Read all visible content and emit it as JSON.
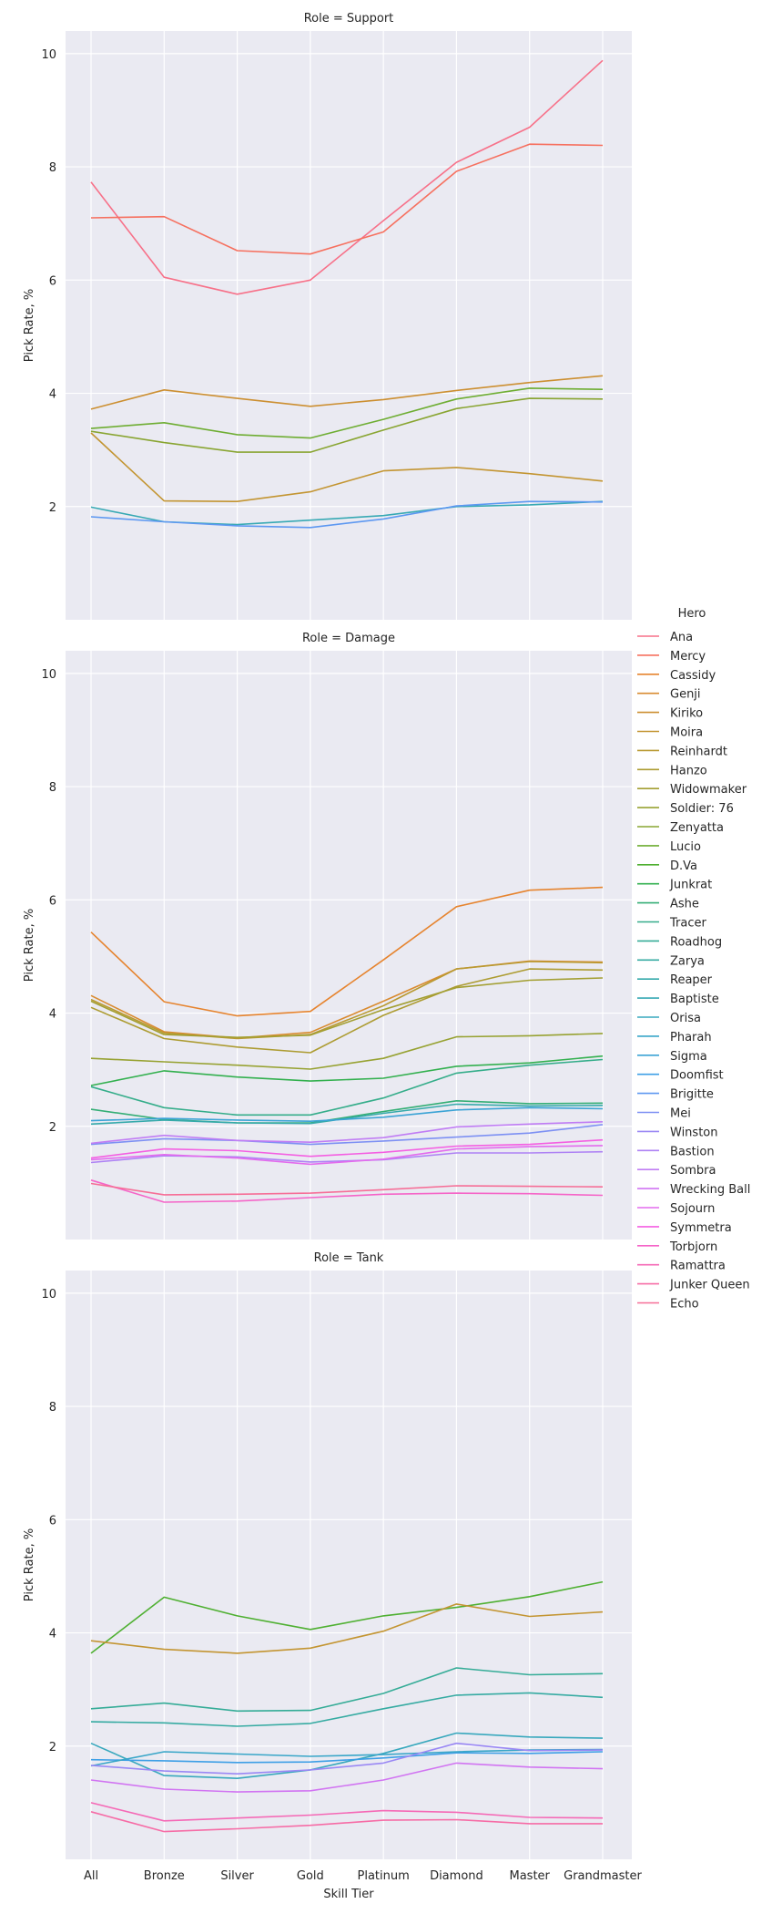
{
  "chart_data": {
    "type": "line",
    "xlabel": "Skill Tier",
    "ylabel": "Pick Rate, %",
    "ylim": [
      0,
      10.4
    ],
    "yticks": [
      2,
      4,
      6,
      8,
      10
    ],
    "grid": true,
    "legend_title": "Hero",
    "legend_position": "right",
    "categories": [
      "All",
      "Bronze",
      "Silver",
      "Gold",
      "Platinum",
      "Diamond",
      "Master",
      "Grandmaster"
    ],
    "palette": {
      "Ana": "#f77189",
      "Mercy": "#f6705f",
      "Cassidy": "#e6842f",
      "Genji": "#d98b30",
      "Kiriko": "#cc8f31",
      "Moira": "#c39532",
      "Reinhardt": "#b99a32",
      "Hanzo": "#ad9c32",
      "Widowmaker": "#a39f32",
      "Soldier: 76": "#97a232",
      "Zenyatta": "#89a532",
      "Lucio": "#6ead32",
      "D.Va": "#4fb032",
      "Junkrat": "#33b04f",
      "Ashe": "#34ae75",
      "Tracer": "#35ad8a",
      "Roadhog": "#35ac97",
      "Zarya": "#36aba2",
      "Reaper": "#36aaab",
      "Baptiste": "#37a9b4",
      "Orisa": "#38a8bd",
      "Pharah": "#39a6c8",
      "Sigma": "#3ba3d5",
      "Doomfist": "#3d9fe6",
      "Brigitte": "#5d98f1",
      "Mei": "#7d90f3",
      "Winston": "#9a88f4",
      "Bastion": "#ae82f4",
      "Sombra": "#c07df4",
      "Wrecking Ball": "#d174f2",
      "Sojourn": "#e36bee",
      "Symmetra": "#f45fe2",
      "Torbjorn": "#f565c8",
      "Ramattra": "#f569b6",
      "Junker Queen": "#f66ca6",
      "Echo": "#f66e97"
    },
    "panels": [
      {
        "title": "Role = Support",
        "series": [
          {
            "name": "Ana",
            "values": [
              7.73,
              6.05,
              5.75,
              6.0,
              7.05,
              8.08,
              8.7,
              9.88
            ]
          },
          {
            "name": "Mercy",
            "values": [
              7.1,
              7.12,
              6.52,
              6.46,
              6.85,
              7.92,
              8.4,
              8.38
            ]
          },
          {
            "name": "Kiriko",
            "values": [
              3.72,
              4.06,
              3.91,
              3.77,
              3.89,
              4.05,
              4.19,
              4.31
            ]
          },
          {
            "name": "Moira",
            "values": [
              3.3,
              2.1,
              2.09,
              2.26,
              2.63,
              2.69,
              2.58,
              2.45
            ]
          },
          {
            "name": "Zenyatta",
            "values": [
              3.33,
              3.13,
              2.96,
              2.96,
              3.35,
              3.73,
              3.91,
              3.9
            ]
          },
          {
            "name": "Lucio",
            "values": [
              3.38,
              3.48,
              3.27,
              3.21,
              3.54,
              3.9,
              4.09,
              4.07
            ]
          },
          {
            "name": "Baptiste",
            "values": [
              1.99,
              1.73,
              1.68,
              1.76,
              1.84,
              2.0,
              2.03,
              2.09
            ]
          },
          {
            "name": "Brigitte",
            "values": [
              1.82,
              1.73,
              1.66,
              1.63,
              1.78,
              2.01,
              2.09,
              2.08
            ]
          }
        ]
      },
      {
        "title": "Role = Damage",
        "series": [
          {
            "name": "Cassidy",
            "values": [
              5.43,
              4.2,
              3.95,
              4.03,
              4.94,
              5.88,
              6.17,
              6.22
            ]
          },
          {
            "name": "Genji",
            "values": [
              4.31,
              3.67,
              3.56,
              3.66,
              4.21,
              4.78,
              4.92,
              4.9
            ]
          },
          {
            "name": "Reinhardt",
            "values": [
              4.24,
              3.65,
              3.55,
              3.62,
              4.13,
              4.78,
              4.91,
              4.89
            ]
          },
          {
            "name": "Hanzo",
            "values": [
              4.1,
              3.55,
              3.4,
              3.3,
              3.96,
              4.47,
              4.78,
              4.76
            ]
          },
          {
            "name": "Widowmaker",
            "values": [
              4.21,
              3.62,
              3.57,
              3.61,
              4.06,
              4.45,
              4.58,
              4.62
            ]
          },
          {
            "name": "Soldier: 76",
            "values": [
              3.2,
              3.14,
              3.08,
              3.01,
              3.2,
              3.58,
              3.6,
              3.64
            ]
          },
          {
            "name": "Junkrat",
            "values": [
              2.72,
              2.98,
              2.87,
              2.8,
              2.85,
              3.06,
              3.12,
              3.24
            ]
          },
          {
            "name": "Ashe",
            "values": [
              2.3,
              2.12,
              2.06,
              2.06,
              2.26,
              2.45,
              2.4,
              2.41
            ]
          },
          {
            "name": "Tracer",
            "values": [
              2.7,
              2.33,
              2.2,
              2.2,
              2.5,
              2.94,
              3.08,
              3.18
            ]
          },
          {
            "name": "Reaper",
            "values": [
              2.04,
              2.11,
              2.06,
              2.05,
              2.23,
              2.39,
              2.36,
              2.37
            ]
          },
          {
            "name": "Sigma",
            "values": [
              2.1,
              2.14,
              2.11,
              2.09,
              2.16,
              2.29,
              2.33,
              2.31
            ]
          },
          {
            "name": "Mei",
            "values": [
              1.68,
              1.78,
              1.75,
              1.68,
              1.74,
              1.81,
              1.88,
              2.03
            ]
          },
          {
            "name": "Sombra",
            "values": [
              1.7,
              1.84,
              1.75,
              1.72,
              1.8,
              1.99,
              2.04,
              2.08
            ]
          },
          {
            "name": "Bastion",
            "values": [
              1.36,
              1.48,
              1.46,
              1.37,
              1.41,
              1.53,
              1.53,
              1.55
            ]
          },
          {
            "name": "Sojourn",
            "values": [
              1.41,
              1.5,
              1.44,
              1.33,
              1.42,
              1.6,
              1.64,
              1.66
            ]
          },
          {
            "name": "Symmetra",
            "values": [
              1.44,
              1.6,
              1.57,
              1.47,
              1.54,
              1.65,
              1.68,
              1.76
            ]
          },
          {
            "name": "Torbjorn",
            "values": [
              1.05,
              0.66,
              0.68,
              0.74,
              0.8,
              0.82,
              0.81,
              0.78
            ]
          },
          {
            "name": "Echo",
            "values": [
              0.99,
              0.79,
              0.8,
              0.82,
              0.88,
              0.95,
              0.94,
              0.93
            ]
          }
        ]
      },
      {
        "title": "Role = Tank",
        "series": [
          {
            "name": "D.Va",
            "values": [
              3.64,
              4.63,
              4.3,
              4.06,
              4.3,
              4.45,
              4.64,
              4.9
            ]
          },
          {
            "name": "Moira",
            "values": [
              3.86,
              3.71,
              3.64,
              3.73,
              4.03,
              4.51,
              4.29,
              4.37
            ]
          },
          {
            "name": "Roadhog",
            "values": [
              2.66,
              2.76,
              2.62,
              2.63,
              2.93,
              3.38,
              3.26,
              3.28
            ]
          },
          {
            "name": "Zarya",
            "values": [
              2.43,
              2.41,
              2.35,
              2.4,
              2.66,
              2.9,
              2.94,
              2.86
            ]
          },
          {
            "name": "Orisa",
            "values": [
              2.05,
              1.48,
              1.43,
              1.58,
              1.87,
              2.23,
              2.16,
              2.14
            ]
          },
          {
            "name": "Doomfist",
            "values": [
              1.76,
              1.74,
              1.71,
              1.72,
              1.79,
              1.88,
              1.87,
              1.9
            ]
          },
          {
            "name": "Pharah",
            "values": [
              1.65,
              1.9,
              1.86,
              1.82,
              1.85,
              1.9,
              1.93,
              1.94
            ]
          },
          {
            "name": "Winston",
            "values": [
              1.66,
              1.56,
              1.51,
              1.58,
              1.7,
              2.05,
              1.92,
              1.93
            ]
          },
          {
            "name": "Wrecking Ball",
            "values": [
              1.4,
              1.24,
              1.19,
              1.21,
              1.4,
              1.7,
              1.63,
              1.6
            ]
          },
          {
            "name": "Ramattra",
            "values": [
              1.0,
              0.68,
              0.73,
              0.78,
              0.86,
              0.83,
              0.74,
              0.73
            ]
          },
          {
            "name": "Junker Queen",
            "values": [
              0.84,
              0.49,
              0.54,
              0.6,
              0.69,
              0.7,
              0.63,
              0.63
            ]
          }
        ]
      }
    ],
    "legend_order": [
      "Ana",
      "Mercy",
      "Cassidy",
      "Genji",
      "Kiriko",
      "Moira",
      "Reinhardt",
      "Hanzo",
      "Widowmaker",
      "Soldier: 76",
      "Zenyatta",
      "Lucio",
      "D.Va",
      "Junkrat",
      "Ashe",
      "Tracer",
      "Roadhog",
      "Zarya",
      "Reaper",
      "Baptiste",
      "Orisa",
      "Pharah",
      "Sigma",
      "Doomfist",
      "Brigitte",
      "Mei",
      "Winston",
      "Bastion",
      "Sombra",
      "Wrecking Ball",
      "Sojourn",
      "Symmetra",
      "Torbjorn",
      "Ramattra",
      "Junker Queen",
      "Echo"
    ]
  }
}
